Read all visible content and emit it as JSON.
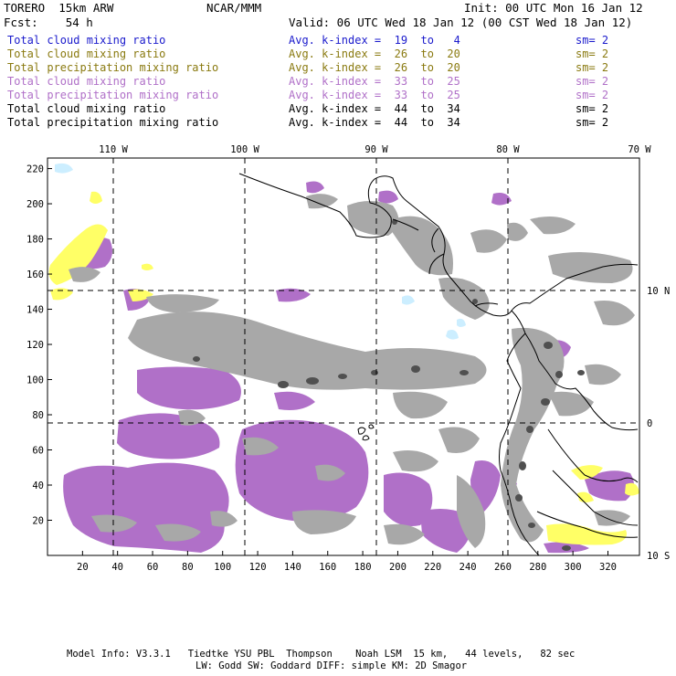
{
  "header": {
    "model": "TORERO  15km ARW",
    "org": "NCAR/MMM",
    "init": "Init: 00 UTC Mon 16 Jan 12",
    "fcst": "Fcst:    54 h",
    "valid": "Valid: 06 UTC Wed 18 Jan 12 (00 CST Wed 18 Jan 12)"
  },
  "legend": [
    {
      "field": "Total cloud mixing ratio",
      "kindex": "Avg. k-index =  19  to   4",
      "sm": "sm= 2",
      "color": "#1a1acc"
    },
    {
      "field": "Total cloud mixing ratio",
      "kindex": "Avg. k-index =  26  to  20",
      "sm": "sm= 2",
      "color": "#8a7a10"
    },
    {
      "field": "Total precipitation mixing ratio",
      "kindex": "Avg. k-index =  26  to  20",
      "sm": "sm= 2",
      "color": "#8a7a10"
    },
    {
      "field": "Total cloud mixing ratio",
      "kindex": "Avg. k-index =  33  to  25",
      "sm": "sm= 2",
      "color": "#b070c8"
    },
    {
      "field": "Total precipitation mixing ratio",
      "kindex": "Avg. k-index =  33  to  25",
      "sm": "sm= 2",
      "color": "#b070c8"
    },
    {
      "field": "Total cloud mixing ratio",
      "kindex": "Avg. k-index =  44  to  34",
      "sm": "sm= 2",
      "color": "#000000"
    },
    {
      "field": "Total precipitation mixing ratio",
      "kindex": "Avg. k-index =  44  to  34",
      "sm": "sm= 2",
      "color": "#000000"
    }
  ],
  "map": {
    "lon_labels": [
      "110 W",
      "100 W",
      "90 W",
      "80 W",
      "70 W"
    ],
    "lat_labels": [
      "10 N",
      "0",
      "10 S"
    ],
    "x_ticks": [
      "20",
      "40",
      "60",
      "80",
      "100",
      "120",
      "140",
      "160",
      "180",
      "200",
      "220",
      "240",
      "260",
      "280",
      "300",
      "320"
    ],
    "y_ticks": [
      "220",
      "200",
      "180",
      "160",
      "140",
      "120",
      "100",
      "80",
      "60",
      "40",
      "20"
    ],
    "colors": {
      "yellow": "#ffff66",
      "violet": "#b070c8",
      "gray": "#a8a8a8",
      "dark": "#505050",
      "lightblue": "#cceeff",
      "coast": "#000000"
    }
  },
  "footer": {
    "line1": "Model Info: V3.3.1   Tiedtke YSU PBL  Thompson    Noah LSM  15 km,   44 levels,   82 sec",
    "line2": "LW: Godd SW: Goddard DIFF: simple KM: 2D Smagor"
  }
}
